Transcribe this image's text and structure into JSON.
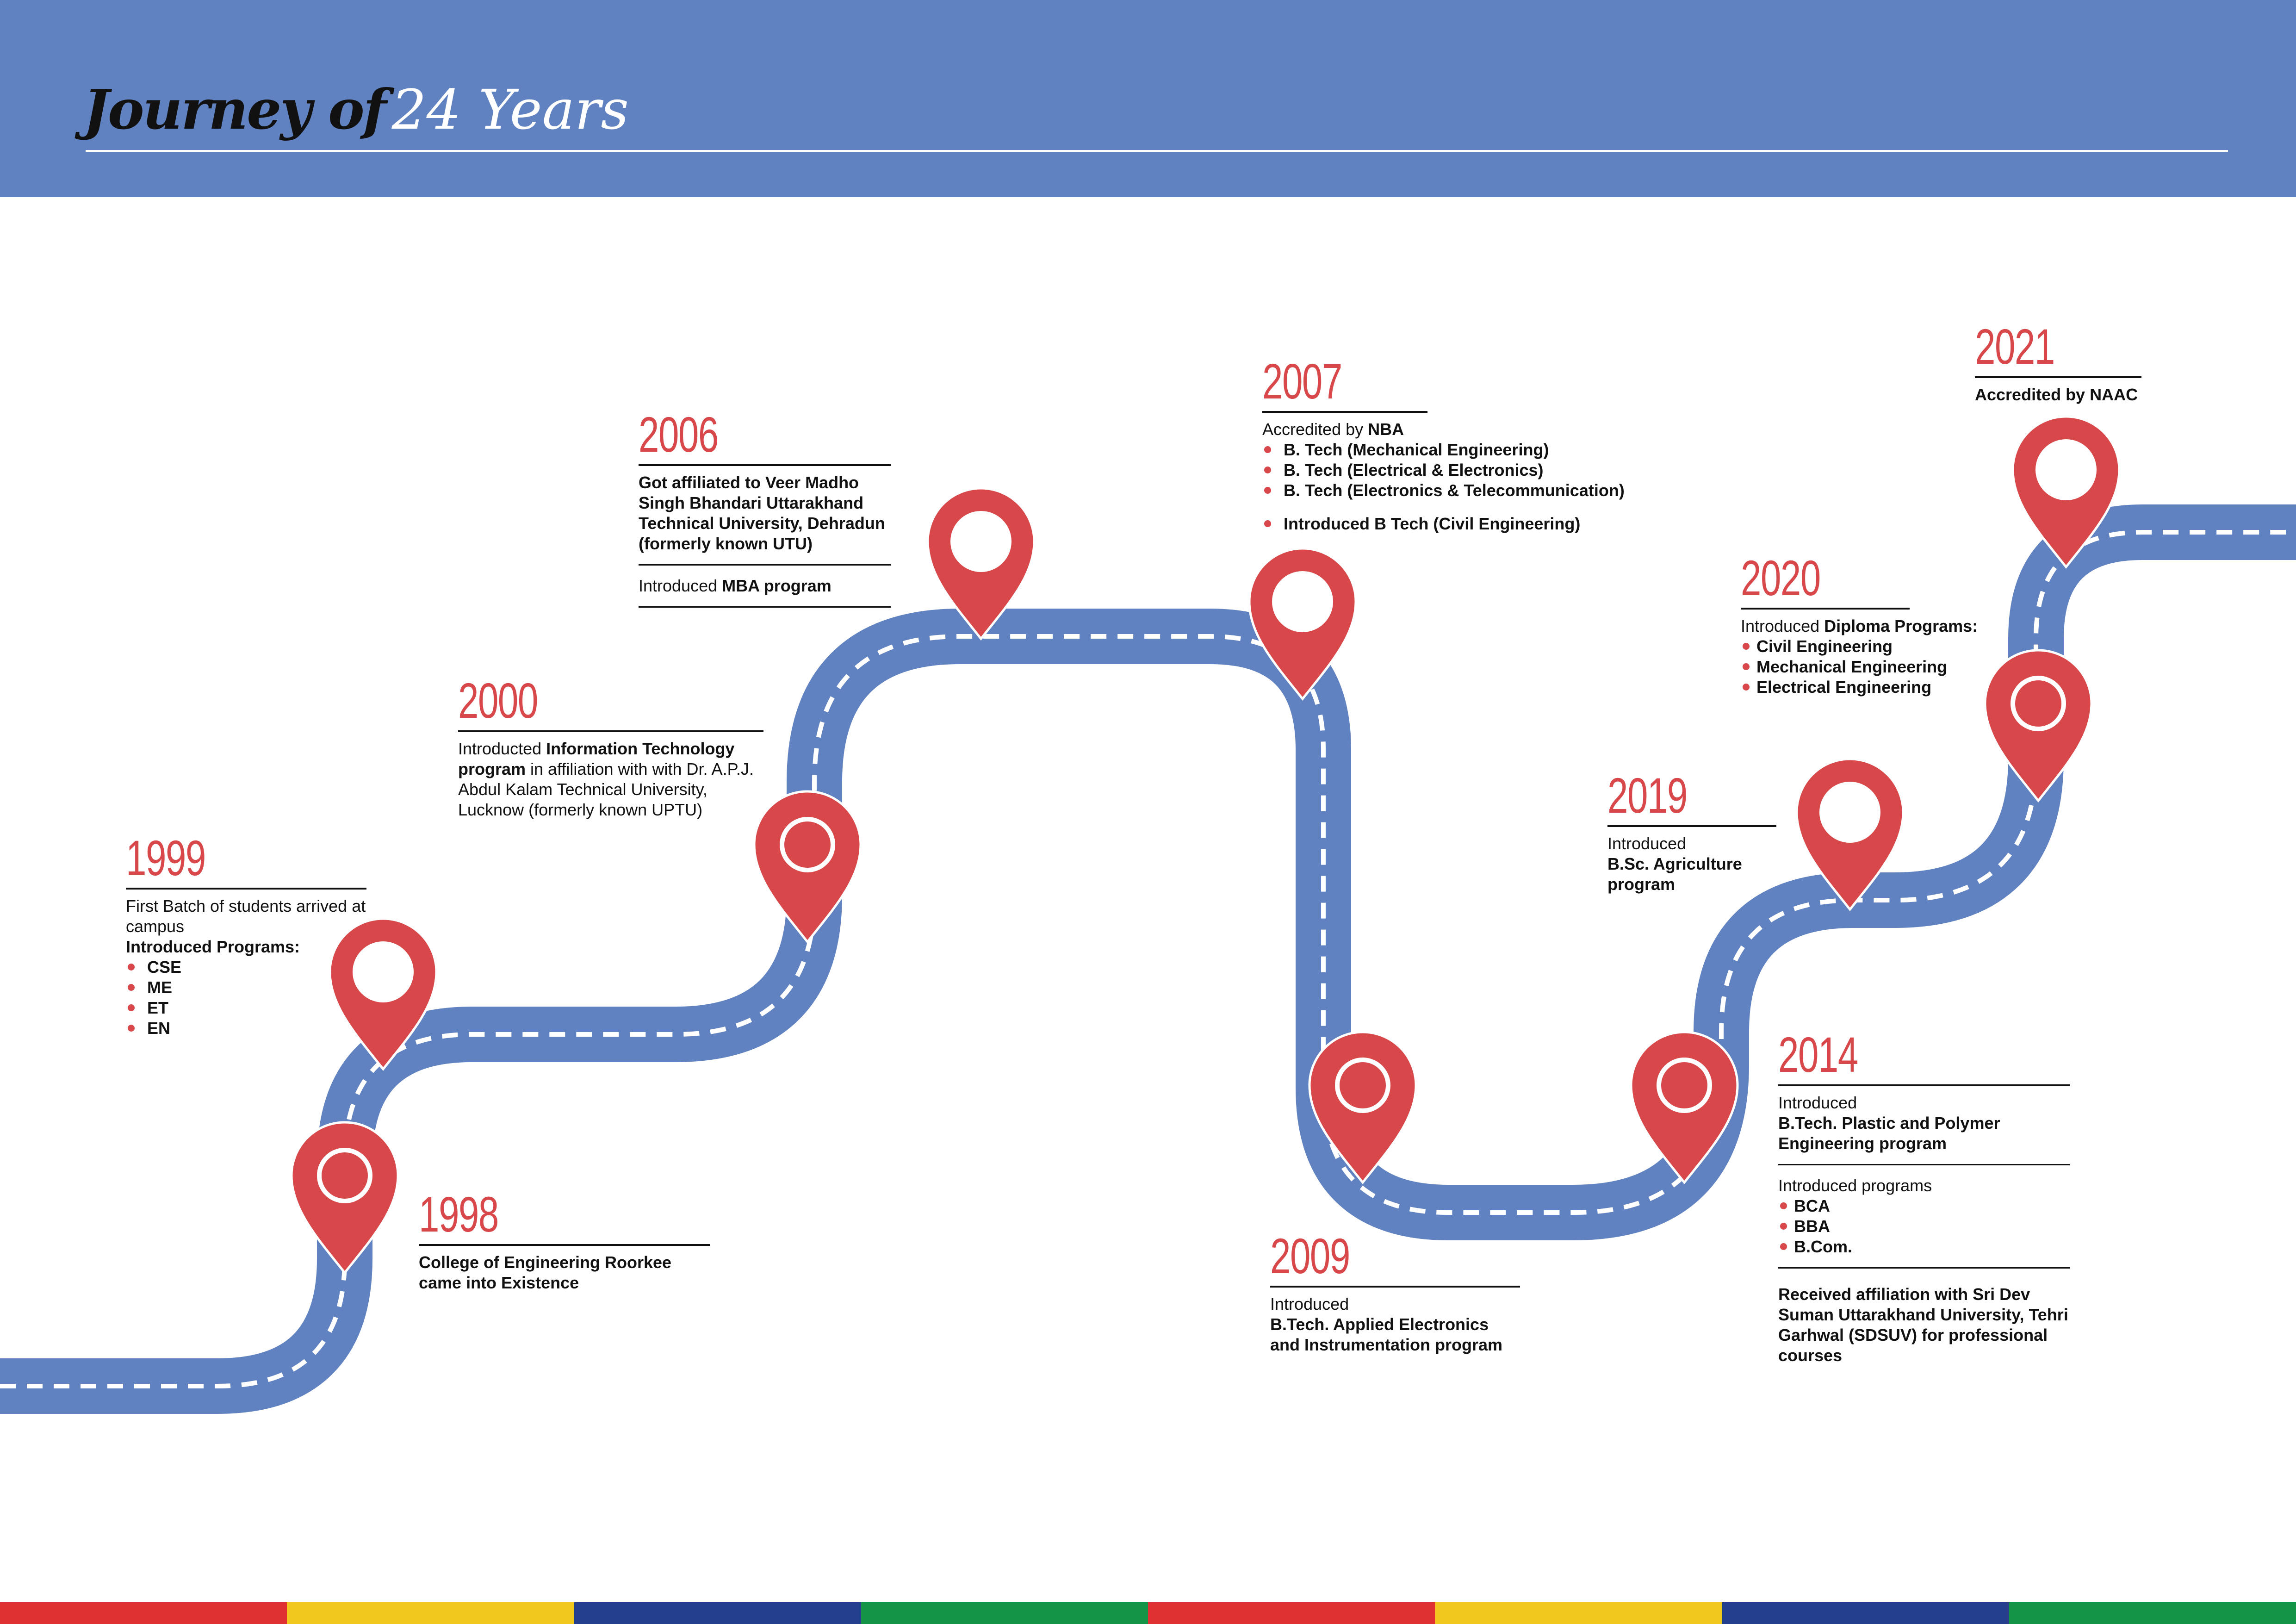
{
  "header": {
    "title_bold": "Journey of",
    "title_light": "24 Years",
    "bg_color": "#6182c1"
  },
  "colors": {
    "road": "#6182c1",
    "pin": "#d8474a",
    "year": "#d8474a"
  },
  "events": {
    "e1998": {
      "year": "1998",
      "text": "College of Engineering Roorkee came into Existence"
    },
    "e1999": {
      "year": "1999",
      "line1": "First Batch of students arrived at campus",
      "line2": "Introduced Programs:",
      "items": [
        "CSE",
        "ME",
        "ET",
        "EN"
      ]
    },
    "e2000": {
      "year": "2000",
      "pre": "Introducted ",
      "bold": "Information Technology program",
      "post": " in affiliation with with Dr. A.P.J. Abdul Kalam Technical University, Lucknow (formerly known UPTU)"
    },
    "e2006": {
      "year": "2006",
      "block1": "Got affiliated to Veer Madho Singh Bhandari Uttarakhand Technical University, Dehradun (formerly known UTU)",
      "b2_pre": "Introduced ",
      "b2_bold": "MBA program"
    },
    "e2007": {
      "year": "2007",
      "pre": "Accredited by ",
      "bold": "NBA",
      "items": [
        "B. Tech (Mechanical Engineering)",
        "B. Tech (Electrical & Electronics)",
        "B. Tech (Electronics & Telecommunication)"
      ],
      "item2": "Introduced B Tech (Civil Engineering)"
    },
    "e2009": {
      "year": "2009",
      "line1": "Introduced",
      "line2": "B.Tech. Applied Electronics and Instrumentation program"
    },
    "e2014": {
      "year": "2014",
      "line1": "Introduced",
      "line2": "B.Tech. Plastic and Polymer Engineering program",
      "line3": "Introduced programs",
      "items": [
        "BCA",
        "BBA",
        "B.Com."
      ],
      "line4": "Received affiliation with Sri Dev Suman Uttarakhand University, Tehri Garhwal (SDSUV) for professional courses"
    },
    "e2019": {
      "year": "2019",
      "line1": "Introduced",
      "line2": "B.Sc. Agriculture program"
    },
    "e2020": {
      "year": "2020",
      "pre": "Introduced ",
      "bold": "Diploma Programs:",
      "items": [
        "Civil Engineering",
        "Mechanical Engineering",
        "Electrical Engineering"
      ]
    },
    "e2021": {
      "year": "2021",
      "text": "Accredited by NAAC"
    }
  },
  "footer": {
    "stripe_colors": [
      "#e03132",
      "#f0c81e",
      "#253f8f",
      "#149447",
      "#e03132",
      "#f0c81e",
      "#253f8f",
      "#149447"
    ]
  }
}
